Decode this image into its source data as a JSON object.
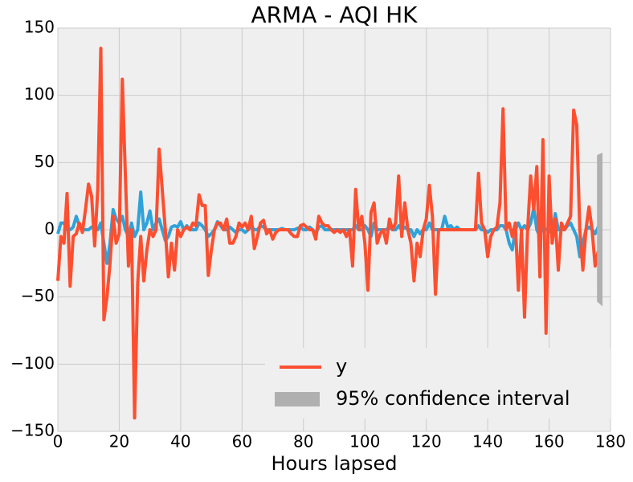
{
  "chart_data": {
    "type": "line",
    "title": "ARMA - AQI HK",
    "x_label": "Hours lapsed",
    "x": [
      0,
      1,
      2,
      3,
      4,
      5,
      6,
      7,
      8,
      9,
      10,
      11,
      12,
      13,
      14,
      15,
      16,
      17,
      18,
      19,
      20,
      21,
      22,
      23,
      24,
      25,
      26,
      27,
      28,
      29,
      30,
      31,
      32,
      33,
      34,
      35,
      36,
      37,
      38,
      39,
      40,
      41,
      42,
      43,
      44,
      45,
      46,
      47,
      48,
      49,
      50,
      51,
      52,
      53,
      54,
      55,
      56,
      57,
      58,
      59,
      60,
      61,
      62,
      63,
      64,
      65,
      66,
      67,
      68,
      69,
      70,
      71,
      72,
      73,
      74,
      75,
      76,
      77,
      78,
      79,
      80,
      81,
      82,
      83,
      84,
      85,
      86,
      87,
      88,
      89,
      90,
      91,
      92,
      93,
      94,
      95,
      96,
      97,
      98,
      99,
      100,
      101,
      102,
      103,
      104,
      105,
      106,
      107,
      108,
      109,
      110,
      111,
      112,
      113,
      114,
      115,
      116,
      117,
      118,
      119,
      120,
      121,
      122,
      123,
      124,
      125,
      126,
      127,
      128,
      129,
      130,
      131,
      132,
      133,
      134,
      135,
      136,
      137,
      138,
      139,
      140,
      141,
      142,
      143,
      144,
      145,
      146,
      147,
      148,
      149,
      150,
      151,
      152,
      153,
      154,
      155,
      156,
      157,
      158,
      159,
      160,
      161,
      162,
      163,
      164,
      165,
      166,
      167,
      168,
      169,
      170,
      171,
      172,
      173,
      174,
      175,
      176,
      177
    ],
    "series": [
      {
        "color": "#30a2da",
        "values": [
          -3,
          5,
          5,
          0,
          0,
          2,
          10,
          3,
          0,
          0,
          0,
          2,
          3,
          0,
          5,
          -10,
          -25,
          -10,
          15,
          8,
          5,
          10,
          0,
          -5,
          5,
          -5,
          0,
          28,
          0,
          5,
          14,
          0,
          5,
          8,
          0,
          -8,
          -5,
          2,
          3,
          2,
          6,
          0,
          3,
          0,
          0,
          0,
          5,
          3,
          0,
          -5,
          -3,
          0,
          6,
          3,
          0,
          0,
          2,
          0,
          -2,
          0,
          0,
          -2,
          0,
          3,
          0,
          0,
          3,
          2,
          0,
          0,
          0,
          0,
          0,
          1,
          0,
          0,
          0,
          0,
          1,
          2,
          0,
          0,
          2,
          0,
          -3,
          2,
          3,
          0,
          0,
          0,
          0,
          0,
          0,
          0,
          0,
          0,
          0,
          3,
          0,
          0,
          3,
          0,
          -5,
          5,
          0,
          0,
          0,
          0,
          2,
          0,
          0,
          3,
          0,
          2,
          0,
          0,
          -5,
          0,
          -3,
          0,
          0,
          5,
          0,
          0,
          0,
          0,
          10,
          2,
          3,
          0,
          2,
          0,
          0,
          0,
          0,
          0,
          0,
          3,
          0,
          0,
          -2,
          0,
          0,
          0,
          3,
          3,
          0,
          -10,
          -15,
          0,
          5,
          0,
          3,
          0,
          5,
          16,
          0,
          -5,
          3,
          0,
          0,
          -3,
          12,
          0,
          0,
          0,
          3,
          5,
          0,
          -5,
          -20,
          -10,
          0,
          2,
          0,
          -3,
          2,
          2
        ]
      },
      {
        "name": "y",
        "color": "#fc4f30",
        "values": [
          -38,
          -5,
          -10,
          27,
          -42,
          -5,
          -3,
          5,
          -2,
          15,
          34,
          25,
          -12,
          30,
          135,
          -67,
          -50,
          -25,
          10,
          -10,
          -3,
          112,
          40,
          -27,
          0,
          -140,
          -40,
          -5,
          -38,
          -15,
          0,
          -5,
          0,
          60,
          30,
          0,
          -35,
          -10,
          -30,
          0,
          -5,
          0,
          2,
          0,
          5,
          3,
          26,
          18,
          18,
          -34,
          -15,
          0,
          5,
          5,
          0,
          8,
          -10,
          -10,
          -5,
          5,
          2,
          5,
          0,
          10,
          -14,
          -5,
          5,
          7,
          -3,
          0,
          -7,
          -2,
          0,
          0,
          0,
          0,
          -3,
          -5,
          -5,
          3,
          4,
          2,
          0,
          0,
          -7,
          10,
          5,
          3,
          3,
          0,
          -2,
          0,
          -2,
          0,
          -5,
          0,
          -27,
          30,
          0,
          10,
          -10,
          -45,
          13,
          20,
          -10,
          -3,
          0,
          -10,
          8,
          0,
          5,
          40,
          -5,
          20,
          0,
          -10,
          -38,
          -10,
          -20,
          0,
          8,
          33,
          10,
          -48,
          0,
          0,
          0,
          0,
          0,
          0,
          0,
          0,
          0,
          0,
          0,
          0,
          0,
          42,
          5,
          0,
          -20,
          -5,
          0,
          2,
          20,
          90,
          0,
          5,
          -5,
          5,
          -45,
          0,
          -65,
          0,
          40,
          15,
          47,
          -35,
          67,
          -77,
          40,
          -10,
          8,
          -30,
          5,
          0,
          5,
          10,
          89,
          78,
          0,
          -30,
          0,
          17,
          0,
          -27,
          -16,
          null
        ]
      }
    ],
    "confidence_interval": {
      "name": "95% confidence interval",
      "color": "#b0b0b0",
      "x": [
        176,
        177
      ],
      "lower": [
        -53,
        -55
      ],
      "upper": [
        55,
        56
      ]
    },
    "xlim": [
      0,
      180
    ],
    "xticks": [
      0,
      20,
      40,
      60,
      80,
      100,
      120,
      140,
      160,
      180
    ],
    "ylim": [
      -150,
      150
    ],
    "yticks": [
      {
        "value": -150,
        "label": "−150"
      },
      {
        "value": -100,
        "label": "−100"
      },
      {
        "value": -50,
        "label": "−50"
      },
      0,
      50,
      100,
      150
    ],
    "grid": true,
    "legend": "lower right"
  }
}
